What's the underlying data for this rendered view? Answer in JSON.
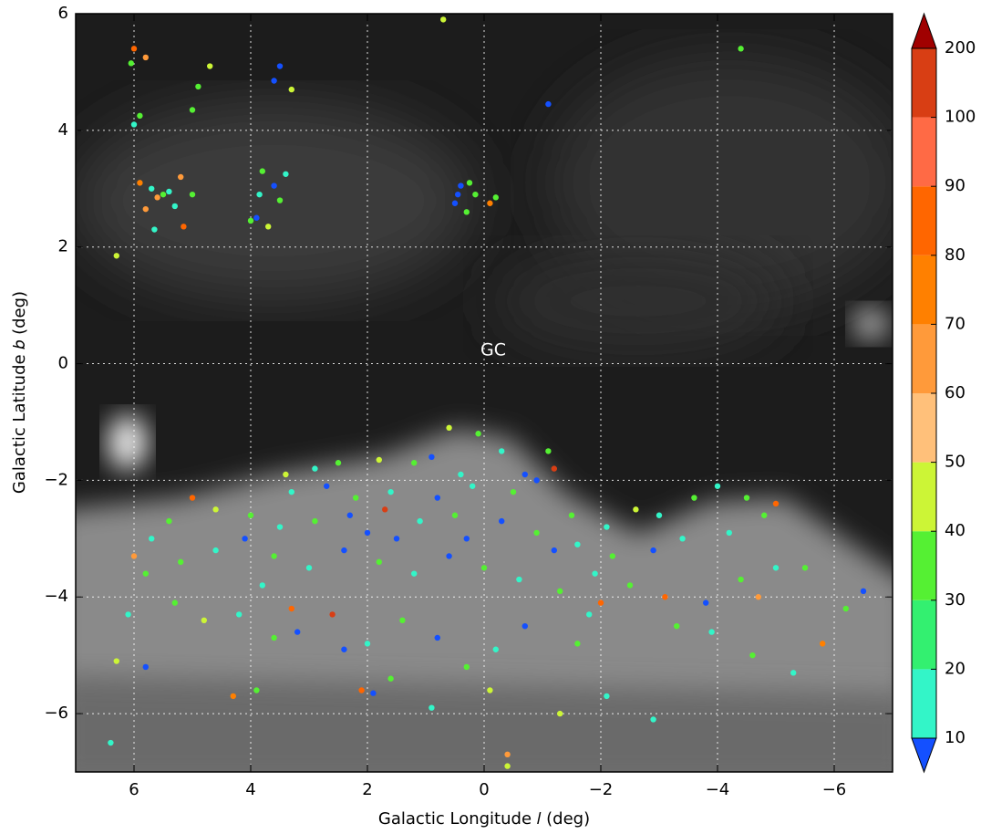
{
  "chart_data": {
    "type": "scatter",
    "x_label": "Galactic Longitude 𝑙 (deg)",
    "y_label": "Galactic Latitude 𝑏 (deg)",
    "annotation": "GC",
    "xlim": [
      7,
      -7
    ],
    "ylim": [
      -7,
      6
    ],
    "xticks": [
      6,
      4,
      2,
      0,
      {
        "value": -2,
        "label": "−2"
      },
      {
        "value": -4,
        "label": "−4"
      },
      {
        "value": -6,
        "label": "−6"
      }
    ],
    "yticks": [
      {
        "value": -6,
        "label": "−6"
      },
      {
        "value": -4,
        "label": "−4"
      },
      {
        "value": -2,
        "label": "−2"
      },
      0,
      2,
      4,
      6
    ],
    "grid": true,
    "colorbar": {
      "ticks": [
        10,
        20,
        30,
        40,
        50,
        60,
        70,
        80,
        90,
        100,
        200
      ],
      "colors": [
        "#1450ff",
        "#33f5c8",
        "#33f070",
        "#55f033",
        "#ccf536",
        "#ffc07a",
        "#ff9a3a",
        "#ff8000",
        "#ff6600",
        "#ff6a45",
        "#d83e14",
        "#a00000"
      ]
    },
    "points": [
      [
        6.0,
        5.4,
        80
      ],
      [
        5.8,
        5.25,
        60
      ],
      [
        6.05,
        5.15,
        30
      ],
      [
        4.7,
        5.1,
        40
      ],
      [
        3.5,
        5.1,
        5
      ],
      [
        3.6,
        4.85,
        5
      ],
      [
        3.3,
        4.7,
        40
      ],
      [
        4.9,
        4.75,
        30
      ],
      [
        5.0,
        4.35,
        30
      ],
      [
        5.9,
        4.25,
        30
      ],
      [
        6.0,
        4.1,
        15
      ],
      [
        -1.1,
        4.45,
        5
      ],
      [
        0.7,
        5.9,
        40
      ],
      [
        -4.4,
        5.4,
        30
      ],
      [
        6.3,
        1.85,
        40
      ],
      [
        5.7,
        3.0,
        15
      ],
      [
        5.5,
        2.9,
        30
      ],
      [
        5.3,
        2.7,
        15
      ],
      [
        5.6,
        2.85,
        60
      ],
      [
        5.2,
        3.2,
        60
      ],
      [
        5.0,
        2.9,
        30
      ],
      [
        5.9,
        3.1,
        70
      ],
      [
        5.8,
        2.65,
        60
      ],
      [
        5.65,
        2.3,
        15
      ],
      [
        5.15,
        2.35,
        80
      ],
      [
        5.4,
        2.95,
        15
      ],
      [
        3.8,
        3.3,
        30
      ],
      [
        3.6,
        3.05,
        5
      ],
      [
        3.5,
        2.8,
        30
      ],
      [
        3.9,
        2.5,
        5
      ],
      [
        3.7,
        2.35,
        40
      ],
      [
        3.4,
        3.25,
        15
      ],
      [
        3.85,
        2.9,
        15
      ],
      [
        4.0,
        2.45,
        30
      ],
      [
        0.4,
        3.05,
        5
      ],
      [
        0.25,
        3.1,
        30
      ],
      [
        0.5,
        2.75,
        5
      ],
      [
        0.3,
        2.6,
        30
      ],
      [
        0.15,
        2.9,
        30
      ],
      [
        -0.1,
        2.75,
        70
      ],
      [
        -0.2,
        2.85,
        30
      ],
      [
        0.45,
        2.9,
        5
      ],
      [
        0.6,
        -1.1,
        40
      ],
      [
        0.1,
        -1.2,
        30
      ],
      [
        -0.3,
        -1.5,
        15
      ],
      [
        -1.1,
        -1.5,
        30
      ],
      [
        -1.2,
        -1.8,
        100
      ],
      [
        0.9,
        -1.6,
        5
      ],
      [
        0.4,
        -1.9,
        15
      ],
      [
        1.2,
        -1.7,
        30
      ],
      [
        1.8,
        -1.65,
        40
      ],
      [
        2.5,
        -1.7,
        30
      ],
      [
        2.9,
        -1.8,
        15
      ],
      [
        3.4,
        -1.9,
        40
      ],
      [
        3.3,
        -2.2,
        15
      ],
      [
        2.7,
        -2.1,
        5
      ],
      [
        2.2,
        -2.3,
        30
      ],
      [
        1.6,
        -2.2,
        15
      ],
      [
        0.8,
        -2.3,
        5
      ],
      [
        0.2,
        -2.1,
        15
      ],
      [
        -0.5,
        -2.2,
        30
      ],
      [
        -0.9,
        -2.0,
        5
      ],
      [
        -1.5,
        -2.6,
        30
      ],
      [
        -2.1,
        -2.8,
        15
      ],
      [
        -2.6,
        -2.5,
        40
      ],
      [
        -3.0,
        -2.6,
        15
      ],
      [
        -3.6,
        -2.3,
        30
      ],
      [
        -4.0,
        -2.1,
        15
      ],
      [
        -4.5,
        -2.3,
        30
      ],
      [
        -5.0,
        -2.4,
        80
      ],
      [
        -4.8,
        -2.6,
        30
      ],
      [
        -4.2,
        -2.9,
        15
      ],
      [
        -3.4,
        -3.0,
        15
      ],
      [
        -2.9,
        -3.2,
        5
      ],
      [
        -2.2,
        -3.3,
        30
      ],
      [
        -1.6,
        -3.1,
        15
      ],
      [
        -0.9,
        -2.9,
        30
      ],
      [
        -0.3,
        -2.7,
        5
      ],
      [
        0.5,
        -2.6,
        30
      ],
      [
        1.1,
        -2.7,
        15
      ],
      [
        1.7,
        -2.5,
        100
      ],
      [
        2.3,
        -2.6,
        5
      ],
      [
        2.9,
        -2.7,
        30
      ],
      [
        3.5,
        -2.8,
        15
      ],
      [
        4.0,
        -2.6,
        30
      ],
      [
        4.6,
        -2.5,
        40
      ],
      [
        5.0,
        -2.3,
        80
      ],
      [
        5.4,
        -2.7,
        30
      ],
      [
        5.7,
        -3.0,
        15
      ],
      [
        6.0,
        -3.3,
        60
      ],
      [
        5.8,
        -3.6,
        30
      ],
      [
        5.2,
        -3.4,
        30
      ],
      [
        4.6,
        -3.2,
        15
      ],
      [
        4.1,
        -3.0,
        5
      ],
      [
        3.6,
        -3.3,
        30
      ],
      [
        3.0,
        -3.5,
        15
      ],
      [
        2.4,
        -3.2,
        5
      ],
      [
        1.8,
        -3.4,
        30
      ],
      [
        1.2,
        -3.6,
        15
      ],
      [
        0.6,
        -3.3,
        5
      ],
      [
        0.0,
        -3.5,
        30
      ],
      [
        -0.6,
        -3.7,
        15
      ],
      [
        -1.3,
        -3.9,
        30
      ],
      [
        -1.9,
        -3.6,
        15
      ],
      [
        -2.5,
        -3.8,
        30
      ],
      [
        -3.1,
        -4.0,
        80
      ],
      [
        -3.8,
        -4.1,
        5
      ],
      [
        -4.4,
        -3.7,
        30
      ],
      [
        -5.0,
        -3.5,
        15
      ],
      [
        -5.5,
        -3.5,
        30
      ],
      [
        -4.7,
        -4.0,
        60
      ],
      [
        -6.2,
        -4.2,
        30
      ],
      [
        -6.5,
        -3.9,
        5
      ],
      [
        -5.8,
        -4.8,
        70
      ],
      [
        -5.3,
        -5.3,
        15
      ],
      [
        -4.6,
        -5.0,
        30
      ],
      [
        -3.9,
        -4.6,
        15
      ],
      [
        -3.3,
        -4.5,
        30
      ],
      [
        -2.9,
        -6.1,
        15
      ],
      [
        -2.1,
        -5.7,
        15
      ],
      [
        -1.6,
        -4.8,
        30
      ],
      [
        -0.7,
        -4.5,
        5
      ],
      [
        -0.2,
        -4.9,
        15
      ],
      [
        0.3,
        -5.2,
        30
      ],
      [
        0.8,
        -4.7,
        5
      ],
      [
        1.4,
        -4.4,
        30
      ],
      [
        2.0,
        -4.8,
        15
      ],
      [
        2.6,
        -4.3,
        100
      ],
      [
        3.2,
        -4.6,
        5
      ],
      [
        3.6,
        -4.7,
        30
      ],
      [
        4.2,
        -4.3,
        15
      ],
      [
        4.8,
        -4.4,
        40
      ],
      [
        5.3,
        -4.1,
        30
      ],
      [
        6.1,
        -4.3,
        15
      ],
      [
        6.3,
        -5.1,
        40
      ],
      [
        6.4,
        -6.5,
        15
      ],
      [
        5.8,
        -5.2,
        5
      ],
      [
        4.3,
        -5.7,
        70
      ],
      [
        3.9,
        -5.6,
        30
      ],
      [
        2.1,
        -5.6,
        80
      ],
      [
        1.6,
        -5.4,
        30
      ],
      [
        0.9,
        -5.9,
        15
      ],
      [
        -0.4,
        -6.7,
        60
      ],
      [
        -0.4,
        -6.9,
        40
      ],
      [
        -1.3,
        -6.0,
        40
      ],
      [
        -0.1,
        -5.6,
        40
      ],
      [
        1.9,
        -5.65,
        5
      ],
      [
        2.4,
        -4.9,
        5
      ],
      [
        -0.7,
        -1.9,
        5
      ],
      [
        0.3,
        -3.0,
        5
      ],
      [
        1.5,
        -3.0,
        5
      ],
      [
        -1.2,
        -3.2,
        5
      ],
      [
        2.0,
        -2.9,
        5
      ],
      [
        -2.0,
        -4.1,
        80
      ],
      [
        -1.8,
        -4.3,
        15
      ],
      [
        3.8,
        -3.8,
        15
      ],
      [
        3.3,
        -4.2,
        80
      ]
    ]
  }
}
